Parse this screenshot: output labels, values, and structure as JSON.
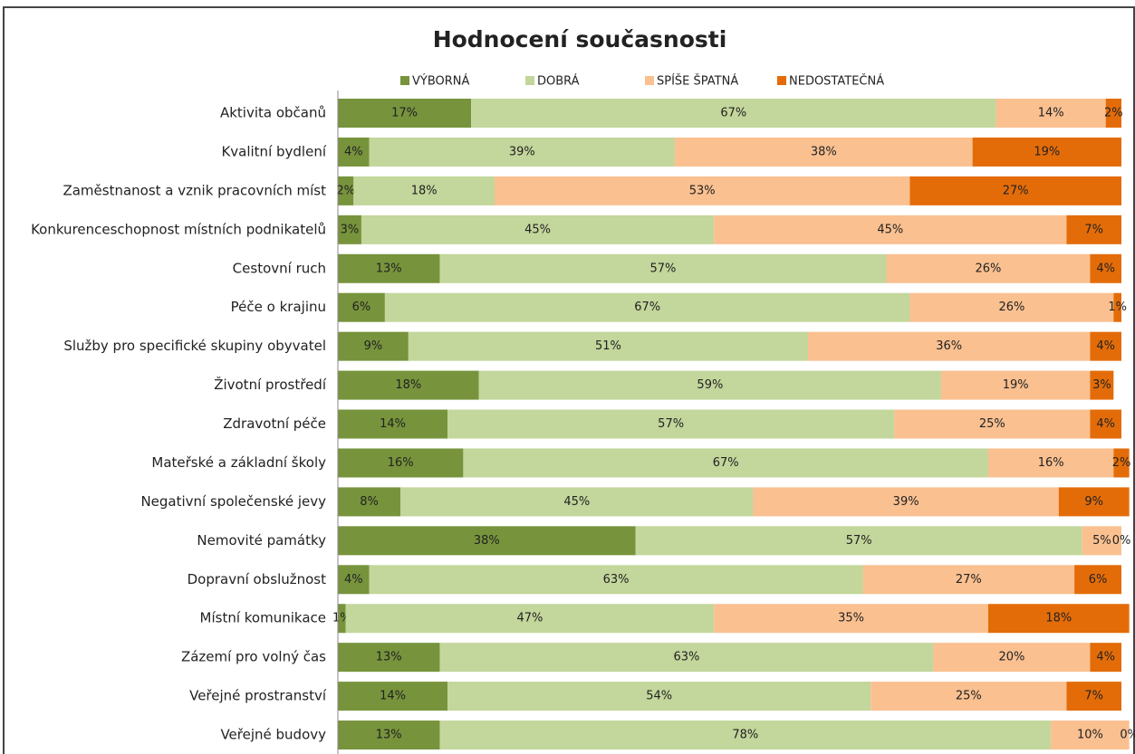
{
  "chart_data": {
    "type": "stacked-bar-horizontal",
    "title": "Hodnocení současnosti",
    "categories": [
      "Aktivita občanů",
      "Kvalitní bydlení",
      "Zaměstnanost a vznik pracovních míst",
      "Konkurenceschopnost místních podnikatelů",
      "Cestovní ruch",
      "Péče o krajinu",
      "Služby pro specifické skupiny obyvatel",
      "Životní prostředí",
      "Zdravotní péče",
      "Mateřské a základní školy",
      "Negativní společenské jevy",
      "Nemovité památky",
      "Dopravní obslužnost",
      "Místní komunikace",
      "Zázemí pro volný čas",
      "Veřejné prostranství",
      "Veřejné budovy"
    ],
    "series": [
      {
        "name": "VÝBORNÁ",
        "color": "#77933c",
        "values": [
          17,
          4,
          2,
          3,
          13,
          6,
          9,
          18,
          14,
          16,
          8,
          38,
          4,
          1,
          13,
          14,
          13
        ],
        "value_labels": [
          "17%",
          "4%",
          "2%",
          "3%",
          "13%",
          "6%",
          "9%",
          "18%",
          "14%",
          "16%",
          "8%",
          "38%",
          "4%",
          "1%",
          "13%",
          "14%",
          "13%"
        ]
      },
      {
        "name": "DOBRÁ",
        "color": "#c3d69b",
        "values": [
          67,
          39,
          18,
          45,
          57,
          67,
          51,
          59,
          57,
          67,
          45,
          57,
          63,
          47,
          63,
          54,
          78
        ],
        "value_labels": [
          "67%",
          "39%",
          "18%",
          "45%",
          "57%",
          "67%",
          "51%",
          "59%",
          "57%",
          "67%",
          "45%",
          "57%",
          "63%",
          "47%",
          "63%",
          "54%",
          "78%"
        ]
      },
      {
        "name": "SPÍŠE ŠPATNÁ",
        "color": "#fac090",
        "values": [
          14,
          38,
          53,
          45,
          26,
          26,
          36,
          19,
          25,
          16,
          39,
          5,
          27,
          35,
          20,
          25,
          10
        ],
        "value_labels": [
          "14%",
          "38%",
          "53%",
          "45%",
          "26%",
          "26%",
          "36%",
          "19%",
          "25%",
          "16%",
          "39%",
          "5%",
          "27%",
          "35%",
          "20%",
          "25%",
          "10%"
        ]
      },
      {
        "name": "NEDOSTATEČNÁ",
        "color": "#e36c09",
        "values": [
          2,
          19,
          27,
          7,
          4,
          1,
          4,
          3,
          4,
          2,
          9,
          0,
          6,
          18,
          4,
          7,
          0
        ],
        "value_labels": [
          "2%",
          "19%",
          "27%",
          "7%",
          "4%",
          "1%",
          "4%",
          "3%",
          "4%",
          "2%",
          "9%",
          "0%",
          "6%",
          "18%",
          "4%",
          "7%",
          "0%"
        ]
      }
    ],
    "xlim": [
      0,
      100
    ],
    "legend": "top"
  }
}
